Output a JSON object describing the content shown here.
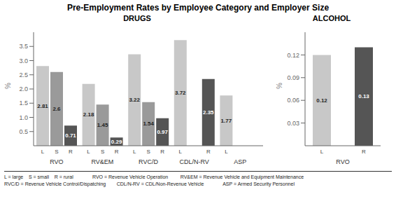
{
  "chart_data": [
    {
      "type": "bar",
      "title": "Pre-Employment Rates by Employee Category and Employer Size",
      "subtitle": "DRUGS",
      "ylabel": "%",
      "categories": [
        "RVO",
        "RV&EM",
        "RVC/D",
        "CDL/N-RV",
        "ASP"
      ],
      "series": [
        {
          "name": "L",
          "color": "#c8c8c8",
          "values": [
            2.81,
            2.18,
            3.22,
            3.72,
            1.77
          ]
        },
        {
          "name": "S",
          "color": "#9a9a9a",
          "values": [
            2.6,
            1.45,
            1.54,
            0,
            0
          ]
        },
        {
          "name": "R",
          "color": "#555555",
          "values": [
            0.71,
            0.29,
            0.97,
            2.35,
            0
          ]
        }
      ],
      "ylim": [
        0,
        4
      ],
      "yticks": [
        0.5,
        {
          "value": 1,
          "label": "1.0"
        },
        1.5,
        {
          "value": 2,
          "label": "2.0"
        },
        2.5,
        {
          "value": 3,
          "label": "3.0"
        },
        3.5
      ],
      "data_labels": true,
      "grid": false,
      "annotations": [
        "L = large    S = small    R = rural              RVO = Revenue Vehicle Operation         RV&EM = Revenue Vehicle and Equipment Maintenance",
        "RVC/D = Revenue Vehicle Control/Dispatching        CDL/N-RV = CDL/Non-Revenue Vehicle              ASP = Armed Security Personnel"
      ]
    },
    {
      "type": "bar",
      "title": "ALCOHOL",
      "ylabel": "%",
      "categories": [
        "RVO"
      ],
      "series": [
        {
          "name": "L",
          "color": "#c8c8c8",
          "values": [
            0.12
          ]
        },
        {
          "name": "S",
          "color": "#9a9a9a",
          "values": [
            0
          ]
        },
        {
          "name": "R",
          "color": "#555555",
          "values": [
            0.13
          ]
        }
      ],
      "ylim": [
        0,
        0.15
      ],
      "yticks": [
        0.03,
        0.06,
        0.09,
        0.12
      ],
      "data_labels": true,
      "grid": false
    }
  ]
}
